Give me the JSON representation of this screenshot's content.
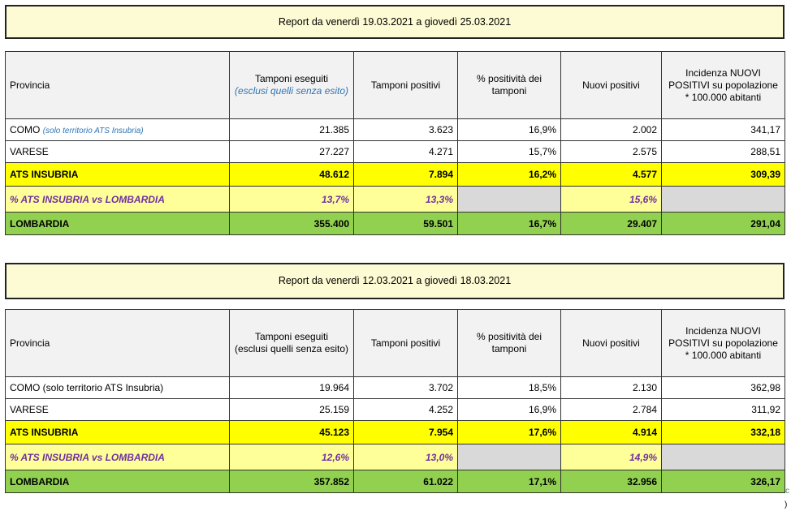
{
  "report1": {
    "title": "Report da venerdì 19.03.2021 a giovedì 25.03.2021",
    "headers": {
      "provincia": "Provincia",
      "tamponi_eseguiti": "Tamponi eseguiti",
      "tamponi_eseguiti_note": "(esclusi quelli senza esito)",
      "tamponi_positivi": "Tamponi positivi",
      "positivita": "% positività dei tamponi",
      "nuovi_positivi": "Nuovi positivi",
      "incidenza": "Incidenza NUOVI POSITIVI su popolazione * 100.000 abitanti"
    },
    "rows": {
      "como": {
        "label": "COMO",
        "note": "(solo territorio ATS Insubria)",
        "eseguiti": "21.385",
        "positivi": "3.623",
        "positivita": "16,9%",
        "nuovi": "2.002",
        "incidenza": "341,17"
      },
      "varese": {
        "label": "VARESE",
        "eseguiti": "27.227",
        "positivi": "4.271",
        "positivita": "15,7%",
        "nuovi": "2.575",
        "incidenza": "288,51"
      },
      "ats": {
        "label": "ATS INSUBRIA",
        "eseguiti": "48.612",
        "positivi": "7.894",
        "positivita": "16,2%",
        "nuovi": "4.577",
        "incidenza": "309,39"
      },
      "pct": {
        "label": "% ATS INSUBRIA vs LOMBARDIA",
        "eseguiti": "13,7%",
        "positivi": "13,3%",
        "nuovi": "15,6%"
      },
      "lombardia": {
        "label": "LOMBARDIA",
        "eseguiti": "355.400",
        "positivi": "59.501",
        "positivita": "16,7%",
        "nuovi": "29.407",
        "incidenza": "291,04"
      }
    }
  },
  "report2": {
    "title": "Report da venerdì 12.03.2021 a giovedì 18.03.2021",
    "headers": {
      "provincia": "Provincia",
      "tamponi_eseguiti": "Tamponi eseguiti",
      "tamponi_eseguiti_note": "(esclusi quelli senza esito)",
      "tamponi_positivi": "Tamponi positivi",
      "positivita": "% positività dei tamponi",
      "nuovi_positivi": "Nuovi positivi",
      "incidenza": "Incidenza NUOVI POSITIVI su popolazione * 100.000 abitanti"
    },
    "rows": {
      "como": {
        "label": "COMO (solo territorio ATS Insubria)",
        "eseguiti": "19.964",
        "positivi": "3.702",
        "positivita": "18,5%",
        "nuovi": "2.130",
        "incidenza": "362,98"
      },
      "varese": {
        "label": "VARESE",
        "eseguiti": "25.159",
        "positivi": "4.252",
        "positivita": "16,9%",
        "nuovi": "2.784",
        "incidenza": "311,92"
      },
      "ats": {
        "label": "ATS INSUBRIA",
        "eseguiti": "45.123",
        "positivi": "7.954",
        "positivita": "17,6%",
        "nuovi": "4.914",
        "incidenza": "332,18"
      },
      "pct": {
        "label": "% ATS INSUBRIA vs LOMBARDIA",
        "eseguiti": "12,6%",
        "positivi": "13,0%",
        "nuovi": "14,9%"
      },
      "lombardia": {
        "label": "LOMBARDIA",
        "eseguiti": "357.852",
        "positivi": "61.022",
        "positivita": "17,1%",
        "nuovi": "32.956",
        "incidenza": "326,17"
      }
    }
  },
  "edge": {
    "mark1": "c",
    "mark2": ")"
  },
  "colors": {
    "banner_bg": "#fdfbd3",
    "ats_row": "#ffff00",
    "pct_row": "#ffff99",
    "pct_text": "#7030a0",
    "gray_cell": "#d9d9d9",
    "lombardia_row": "#92d050",
    "note_blue": "#2e75b6"
  }
}
